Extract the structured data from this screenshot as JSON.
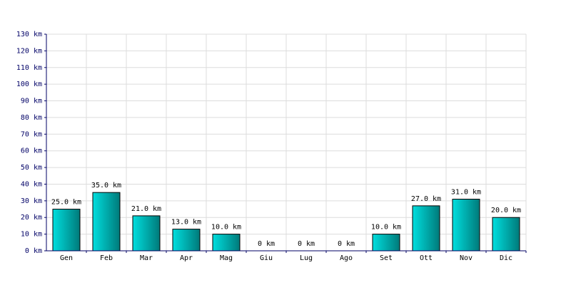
{
  "chart_data": {
    "type": "bar",
    "categories": [
      "Gen",
      "Feb",
      "Mar",
      "Apr",
      "Mag",
      "Giu",
      "Lug",
      "Ago",
      "Set",
      "Ott",
      "Nov",
      "Dic"
    ],
    "values": [
      25,
      35,
      21,
      13,
      10,
      0,
      0,
      0,
      10,
      27,
      31,
      20
    ],
    "value_labels": [
      "25.0 km",
      "35.0 km",
      "21.0 km",
      "13.0 km",
      "10.0 km",
      "0 km",
      "0 km",
      "0 km",
      "10.0 km",
      "27.0 km",
      "31.0 km",
      "20.0 km"
    ],
    "color": "#00dede",
    "ylim": [
      0,
      130
    ],
    "yticks": [
      {
        "value": 0,
        "label": "0 km"
      },
      {
        "value": 10,
        "label": "10 km"
      },
      {
        "value": 20,
        "label": "20 km"
      },
      {
        "value": 30,
        "label": "30 km"
      },
      {
        "value": 40,
        "label": "40 km"
      },
      {
        "value": 50,
        "label": "50 km"
      },
      {
        "value": 60,
        "label": "60 km"
      },
      {
        "value": 70,
        "label": "70 km"
      },
      {
        "value": 80,
        "label": "80 km"
      },
      {
        "value": 90,
        "label": "90 km"
      },
      {
        "value": 100,
        "label": "100 km"
      },
      {
        "value": 110,
        "label": "110 km"
      },
      {
        "value": 120,
        "label": "120 km"
      },
      {
        "value": 130,
        "label": "130 km"
      }
    ],
    "grid": true
  }
}
